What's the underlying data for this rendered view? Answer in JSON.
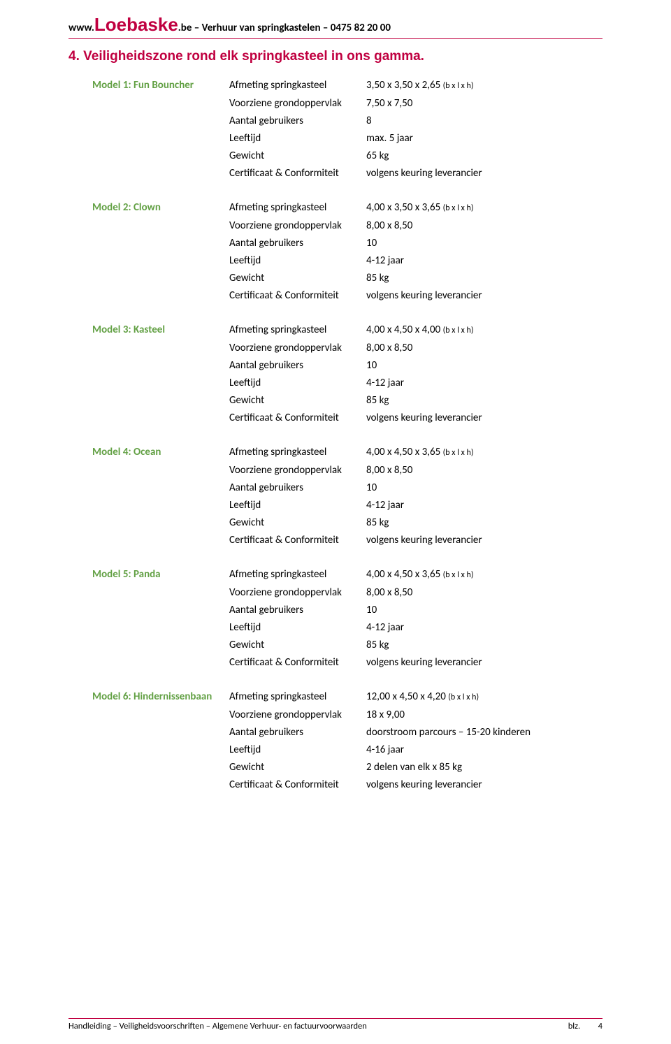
{
  "header": {
    "prefix": "www.",
    "logo": "Loebaske",
    "suffix": ".be – Verhuur van springkastelen – 0475 82 20 00"
  },
  "section_number": "4.",
  "section_title": "Veiligheidszone rond elk springkasteel in ons gamma.",
  "labels": {
    "afmeting": "Afmeting springkasteel",
    "voorziene": "Voorziene grondoppervlak",
    "aantal": "Aantal gebruikers",
    "leeftijd": "Leeftijd",
    "gewicht": "Gewicht",
    "cert": "Certificaat & Conformiteit"
  },
  "dim_suffix": "(b x l x h)",
  "models": [
    {
      "name": "Model 1: Fun Bouncher",
      "afmeting": "3,50 x 3,50 x 2,65",
      "voorziene": "7,50 x 7,50",
      "aantal": "8",
      "leeftijd": "max. 5 jaar",
      "gewicht": "65 kg",
      "cert": "volgens keuring leverancier"
    },
    {
      "name": "Model 2: Clown",
      "afmeting": "4,00 x 3,50 x 3,65",
      "voorziene": "8,00 x 8,50",
      "aantal": "10",
      "leeftijd": "4-12 jaar",
      "gewicht": "85 kg",
      "cert": "volgens keuring leverancier"
    },
    {
      "name": "Model 3: Kasteel",
      "afmeting": "4,00 x 4,50 x 4,00",
      "voorziene": "8,00 x 8,50",
      "aantal": "10",
      "leeftijd": "4-12 jaar",
      "gewicht": "85 kg",
      "cert": "volgens keuring leverancier"
    },
    {
      "name": "Model 4: Ocean",
      "afmeting": "4,00 x 4,50 x 3,65",
      "voorziene": "8,00 x 8,50",
      "aantal": "10",
      "leeftijd": "4-12 jaar",
      "gewicht": "85 kg",
      "cert": "volgens keuring leverancier"
    },
    {
      "name": "Model 5: Panda",
      "afmeting": "4,00 x 4,50 x 3,65",
      "voorziene": "8,00 x 8,50",
      "aantal": "10",
      "leeftijd": "4-12 jaar",
      "gewicht": "85 kg",
      "cert": "volgens keuring leverancier"
    },
    {
      "name": "Model 6: Hindernissenbaan",
      "afmeting": "12,00 x 4,50 x 4,20",
      "voorziene": "18 x 9,00",
      "aantal": "doorstroom parcours – 15-20 kinderen",
      "leeftijd": "4-16 jaar",
      "gewicht": "2 delen van elk x 85 kg",
      "cert": "volgens keuring leverancier"
    }
  ],
  "footer": {
    "left": "Handleiding – Veiligheidsvoorschriften – Algemene Verhuur- en factuurvoorwaarden",
    "blz_label": "blz.",
    "page_no": "4"
  },
  "colors": {
    "accent": "#c00040",
    "model_name": "#62a044",
    "text": "#000000",
    "background": "#ffffff"
  }
}
